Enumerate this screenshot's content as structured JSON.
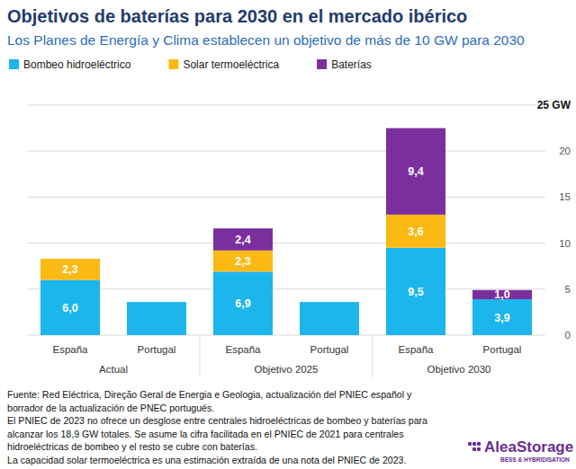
{
  "chart_data": {
    "type": "bar",
    "stacked": true,
    "title": "Objetivos de baterías para 2030 en el mercado ibérico",
    "subtitle": "Los Planes de Energía y Clima establecen un objetivo de más de 10 GW para 2030",
    "categories": [
      "España",
      "Portugal",
      "España",
      "Portugal",
      "España",
      "Portugal"
    ],
    "group_labels": [
      "Actual",
      "Objetivo 2025",
      "Objetivo 2030"
    ],
    "series": [
      {
        "name": "Bombeo hidroeléctrico",
        "color": "#1cb5ec",
        "values": [
          6.0,
          3.6,
          6.9,
          3.6,
          9.5,
          3.9
        ],
        "value_labels": [
          "6,0",
          null,
          "6,9",
          null,
          "9,5",
          "3,9"
        ]
      },
      {
        "name": "Solar termoeléctrica",
        "color": "#fbb913",
        "values": [
          2.3,
          null,
          2.3,
          null,
          3.6,
          null
        ],
        "value_labels": [
          "2,3",
          null,
          "2,3",
          null,
          "3,6",
          null
        ]
      },
      {
        "name": "Baterías",
        "color": "#7b2f9e",
        "values": [
          null,
          null,
          2.4,
          null,
          9.4,
          1.0
        ],
        "value_labels": [
          null,
          null,
          "2,4",
          null,
          "9,4",
          "1,0"
        ]
      }
    ],
    "ylim": [
      0,
      25
    ],
    "yticks": [
      0,
      5,
      10,
      15,
      20,
      {
        "value": 25,
        "label": "25 GW"
      }
    ],
    "grid": true,
    "legend": "top-left",
    "data_labels": true,
    "notes": [
      "Fuente: Red Eléctrica, Direção Geral de Energia e Geologia, actualización del PNIEC español y",
      "borrador de la actualización de PNEC portugués.",
      "El PNIEC de 2023 no ofrece un desglose entre centrales hidroeléctricas de bombeo y baterías para",
      "alcanzar los 18,9 GW totales. Se asume la cifra facilitada en el PNIEC de 2021 para centrales",
      "hidroeléctricas de bombeo y el resto se cubre con baterías.",
      "La capacidad solar termoeléctrica es una estimación extraída de una nota del PNIEC de 2023."
    ],
    "logo": {
      "name": "AleaStorage",
      "tagline": "BESS & HYBRIDISATION"
    }
  }
}
